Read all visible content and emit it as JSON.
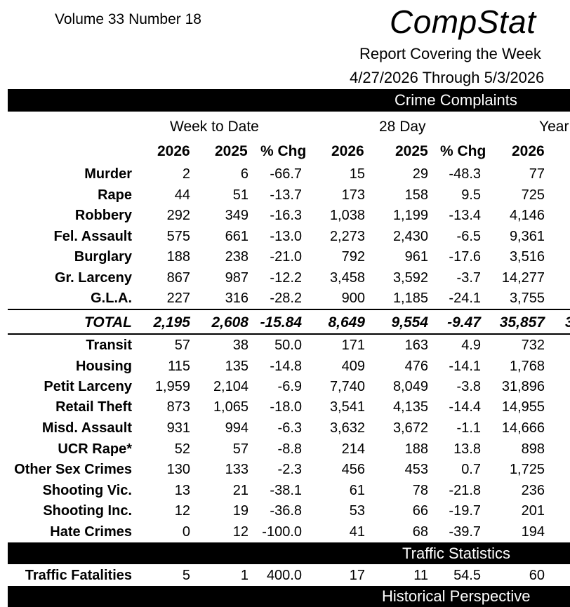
{
  "header": {
    "volume": "Volume 33   Number  18",
    "brand": "CompStat",
    "report_line": "Report Covering the Week",
    "date_line": "4/27/2026  Through  5/3/2026"
  },
  "sections": {
    "crime": "Crime Complaints",
    "traffic": "Traffic Statistics",
    "historical": "Historical Perspective"
  },
  "groups": {
    "week": "Week to Date",
    "day28": "28 Day",
    "year": "Year"
  },
  "columns": [
    "2026",
    "2025",
    "% Chg",
    "2026",
    "2025",
    "% Chg",
    "2026"
  ],
  "crime_rows": [
    {
      "label": "Murder",
      "values": [
        "2",
        "6",
        "-66.7",
        "15",
        "29",
        "-48.3",
        "77"
      ]
    },
    {
      "label": "Rape",
      "values": [
        "44",
        "51",
        "-13.7",
        "173",
        "158",
        "9.5",
        "725"
      ]
    },
    {
      "label": "Robbery",
      "values": [
        "292",
        "349",
        "-16.3",
        "1,038",
        "1,199",
        "-13.4",
        "4,146"
      ]
    },
    {
      "label": "Fel. Assault",
      "values": [
        "575",
        "661",
        "-13.0",
        "2,273",
        "2,430",
        "-6.5",
        "9,361"
      ]
    },
    {
      "label": "Burglary",
      "values": [
        "188",
        "238",
        "-21.0",
        "792",
        "961",
        "-17.6",
        "3,516"
      ]
    },
    {
      "label": "Gr. Larceny",
      "values": [
        "867",
        "987",
        "-12.2",
        "3,458",
        "3,592",
        "-3.7",
        "14,277"
      ]
    },
    {
      "label": "G.L.A.",
      "values": [
        "227",
        "316",
        "-28.2",
        "900",
        "1,185",
        "-24.1",
        "3,755"
      ]
    }
  ],
  "total_row": {
    "label": "TOTAL",
    "values": [
      "2,195",
      "2,608",
      "-15.84",
      "8,649",
      "9,554",
      "-9.47",
      "35,857"
    ],
    "cut_off_digit": "3"
  },
  "other_rows": [
    {
      "label": "Transit",
      "values": [
        "57",
        "38",
        "50.0",
        "171",
        "163",
        "4.9",
        "732"
      ]
    },
    {
      "label": "Housing",
      "values": [
        "115",
        "135",
        "-14.8",
        "409",
        "476",
        "-14.1",
        "1,768"
      ]
    },
    {
      "label": "Petit Larceny",
      "values": [
        "1,959",
        "2,104",
        "-6.9",
        "7,740",
        "8,049",
        "-3.8",
        "31,896"
      ]
    },
    {
      "label": "Retail Theft",
      "values": [
        "873",
        "1,065",
        "-18.0",
        "3,541",
        "4,135",
        "-14.4",
        "14,955"
      ]
    },
    {
      "label": "Misd. Assault",
      "values": [
        "931",
        "994",
        "-6.3",
        "3,632",
        "3,672",
        "-1.1",
        "14,666"
      ]
    },
    {
      "label": "UCR Rape*",
      "values": [
        "52",
        "57",
        "-8.8",
        "214",
        "188",
        "13.8",
        "898"
      ]
    },
    {
      "label": "Other Sex Crimes",
      "values": [
        "130",
        "133",
        "-2.3",
        "456",
        "453",
        "0.7",
        "1,725"
      ]
    },
    {
      "label": "Shooting Vic.",
      "values": [
        "13",
        "21",
        "-38.1",
        "61",
        "78",
        "-21.8",
        "236"
      ]
    },
    {
      "label": "Shooting Inc.",
      "values": [
        "12",
        "19",
        "-36.8",
        "53",
        "66",
        "-19.7",
        "201"
      ]
    },
    {
      "label": "Hate Crimes",
      "values": [
        "0",
        "12",
        "-100.0",
        "41",
        "68",
        "-39.7",
        "194"
      ]
    }
  ],
  "traffic_row": {
    "label": "Traffic Fatalities",
    "values": [
      "5",
      "1",
      "400.0",
      "17",
      "11",
      "54.5",
      "60"
    ]
  }
}
